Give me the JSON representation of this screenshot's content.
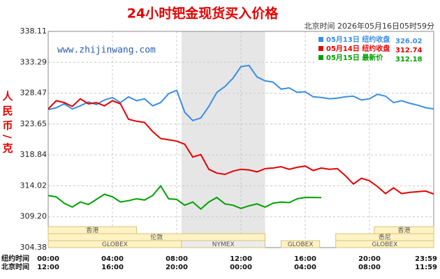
{
  "chart_data": {
    "type": "line",
    "title": "24小时钯金现货买入价格",
    "subtitle": "北京时间  2026年05月16日05时59分",
    "watermark": "www.zhijinwang.com",
    "ylabel": "人民币/克",
    "x_row_labels": [
      "纽约时间",
      "北京时间"
    ],
    "x": [
      0,
      0.5,
      1,
      1.5,
      2,
      2.5,
      3,
      3.5,
      4,
      4.5,
      5,
      5.5,
      6,
      6.5,
      7,
      7.5,
      8,
      8.5,
      9,
      9.5,
      10,
      10.5,
      11,
      11.5,
      12,
      12.5,
      13,
      13.5,
      14,
      14.5,
      15,
      15.5,
      16,
      16.5,
      17,
      17.5,
      18,
      18.5,
      19,
      19.5,
      20,
      20.5,
      21,
      21.5,
      22,
      22.5,
      23,
      23.5,
      24
    ],
    "xlim": [
      0,
      24
    ],
    "xticks": [
      {
        "value": 0,
        "label": "00:00"
      },
      {
        "value": 4,
        "label": "04:00"
      },
      {
        "value": 8,
        "label": "08:00"
      },
      {
        "value": 12,
        "label": "12:00"
      },
      {
        "value": 16,
        "label": "16:00"
      },
      {
        "value": 20,
        "label": "20:00"
      },
      {
        "value": 24,
        "label": "23:59"
      }
    ],
    "xticks2": [
      {
        "value": 0,
        "label": "12:00"
      },
      {
        "value": 4,
        "label": "16:00"
      },
      {
        "value": 8,
        "label": "20:00"
      },
      {
        "value": 12,
        "label": "00:00"
      },
      {
        "value": 16,
        "label": "04:00"
      },
      {
        "value": 20,
        "label": "08:00"
      },
      {
        "value": 24,
        "label": "11:59"
      }
    ],
    "ylim": [
      304.38,
      338.11
    ],
    "yticks": [
      304.38,
      {
        "value": 309.2,
        "label": "309.20"
      },
      314.02,
      318.84,
      323.65,
      328.47,
      333.29,
      338.11
    ],
    "grid": true,
    "series": [
      {
        "name": "05月13日 纽约收盘",
        "color": "#3a8ee6",
        "last": 326.02,
        "values": [
          325.9,
          326.2,
          326.8,
          326.0,
          326.5,
          327.1,
          326.7,
          327.4,
          327.8,
          327.0,
          327.9,
          327.3,
          327.6,
          326.5,
          327.0,
          328.4,
          328.9,
          325.5,
          324.2,
          324.6,
          326.4,
          328.6,
          329.5,
          330.8,
          332.6,
          332.8,
          331.0,
          330.4,
          330.2,
          329.1,
          329.3,
          328.6,
          328.7,
          327.9,
          327.8,
          327.6,
          327.7,
          327.9,
          328.0,
          327.4,
          327.6,
          328.3,
          328.0,
          327.0,
          327.3,
          326.9,
          326.6,
          326.2,
          326.02
        ]
      },
      {
        "name": "05月14日 纽约收盘",
        "color": "#e60000",
        "last": 312.74,
        "values": [
          326.0,
          327.3,
          327.0,
          326.4,
          327.6,
          326.8,
          327.0,
          326.5,
          327.3,
          326.8,
          324.4,
          324.1,
          323.9,
          322.5,
          321.4,
          321.2,
          321.0,
          320.5,
          318.5,
          318.9,
          316.6,
          316.0,
          315.8,
          316.3,
          316.6,
          316.5,
          316.2,
          316.7,
          316.8,
          317.0,
          316.6,
          316.9,
          317.1,
          316.4,
          316.8,
          316.6,
          316.7,
          315.6,
          314.3,
          315.2,
          314.8,
          313.9,
          312.8,
          313.7,
          312.8,
          313.0,
          313.1,
          313.2,
          312.74
        ]
      },
      {
        "name": "05月15日 最新价",
        "color": "#00a000",
        "last": 312.18,
        "values": [
          312.5,
          312.3,
          311.3,
          310.7,
          311.5,
          311.1,
          311.9,
          312.7,
          312.3,
          311.5,
          311.7,
          312.0,
          311.8,
          312.5,
          314.0,
          312.0,
          311.9,
          311.0,
          311.5,
          310.4,
          311.5,
          312.2,
          311.2,
          311.0,
          310.5,
          310.9,
          311.2,
          310.7,
          311.3,
          311.5,
          311.4,
          312.0,
          312.2,
          312.2,
          312.18,
          null,
          null,
          null,
          null,
          null,
          null,
          null,
          null,
          null,
          null,
          null,
          null,
          null,
          null
        ]
      }
    ],
    "session_rows": [
      [
        {
          "label": "香港",
          "start": 0,
          "end": 5.5
        },
        {
          "label": "香港",
          "start": 20.3,
          "end": 24
        }
      ],
      [
        {
          "label": "伦敦",
          "start": 0,
          "end": 13.5
        },
        {
          "label": "悉尼",
          "start": 17.9,
          "end": 24
        }
      ],
      [
        {
          "label": "GLOBEX",
          "start": 0,
          "end": 8.3
        },
        {
          "label": "NYMEX",
          "start": 8.3,
          "end": 13.5,
          "shade": true
        },
        {
          "label": "GLOBEX",
          "start": 14.5,
          "end": 16.9
        },
        {
          "label": "GLOBEX",
          "start": 17.9,
          "end": 24
        }
      ]
    ]
  }
}
